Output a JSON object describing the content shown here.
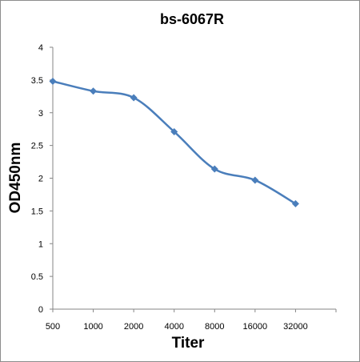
{
  "chart_data": {
    "type": "line",
    "title": "bs-6067R",
    "xlabel": "Titer",
    "ylabel": "OD450nm",
    "categories": [
      "500",
      "1000",
      "2000",
      "4000",
      "8000",
      "16000",
      "32000"
    ],
    "series": [
      {
        "values": [
          3.48,
          3.33,
          3.23,
          2.71,
          2.14,
          1.97,
          1.61
        ]
      }
    ],
    "yticks": [
      "0",
      "0.5",
      "1",
      "1.5",
      "2",
      "2.5",
      "3",
      "3.5",
      "4"
    ],
    "ylim": [
      0,
      4
    ],
    "line_color": "#4a7ebb",
    "smooth": true,
    "marker": "diamond",
    "grid": false,
    "legend": "none"
  }
}
